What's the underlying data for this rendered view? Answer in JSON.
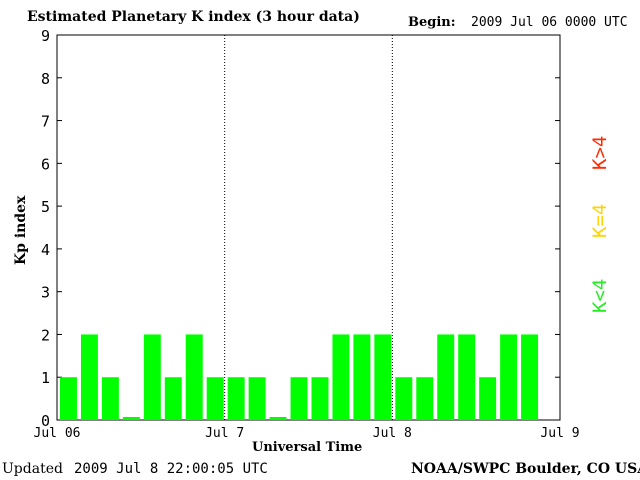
{
  "header": {
    "title": "Estimated Planetary K index (3 hour data)",
    "begin_label": "Begin:",
    "begin_value": "2009 Jul 06 0000 UTC"
  },
  "footer": {
    "updated_label": "Updated",
    "updated_value": "2009 Jul  8 22:00:05 UTC",
    "source": "NOAA/SWPC Boulder, CO USA"
  },
  "legend": {
    "items": [
      {
        "label": "K>4",
        "color": "#ff2a00"
      },
      {
        "label": "K=4",
        "color": "#ffd400"
      },
      {
        "label": "K<4",
        "color": "#22ee22"
      }
    ]
  },
  "chart_data": {
    "type": "bar",
    "xlabel": "Universal Time",
    "ylabel": "Kp index",
    "ylim": [
      0,
      9
    ],
    "yticks": [
      "0",
      "1",
      "2",
      "3",
      "4",
      "5",
      "6",
      "7",
      "8",
      "9"
    ],
    "xticks": [
      "Jul 06",
      "Jul 7",
      "Jul 8",
      "Jul 9"
    ],
    "day_dividers": "dotted vertical lines at day boundaries",
    "bar_color": "#00ff00",
    "values": [
      1,
      2,
      1,
      0,
      2,
      1,
      2,
      1,
      1,
      1,
      0,
      1,
      1,
      2,
      2,
      2,
      1,
      1,
      2,
      2,
      1,
      2,
      2
    ]
  }
}
